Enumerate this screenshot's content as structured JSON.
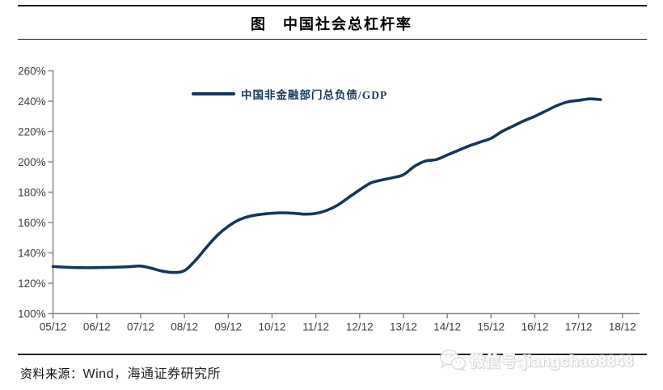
{
  "header": {
    "title": "图　中国社会总杠杆率"
  },
  "chart_data": {
    "type": "line",
    "title": "图　中国社会总杠杆率",
    "grid": false,
    "legend_position": "top-center",
    "x_axis": {
      "tick_labels": [
        "05/12",
        "06/12",
        "07/12",
        "08/12",
        "09/12",
        "10/12",
        "11/12",
        "12/12",
        "13/12",
        "14/12",
        "15/12",
        "16/12",
        "17/12",
        "18/12"
      ]
    },
    "y_axis": {
      "tick_labels": [
        "100%",
        "120%",
        "140%",
        "160%",
        "180%",
        "200%",
        "220%",
        "240%",
        "260%"
      ],
      "min": 100,
      "max": 260,
      "step": 20,
      "unit": "%"
    },
    "series": [
      {
        "name": "中国非金融部门总负债/GDP",
        "color": "#16365C",
        "points": [
          [
            "05/12",
            131.0
          ],
          [
            "06/03",
            130.6
          ],
          [
            "06/06",
            130.3
          ],
          [
            "06/09",
            130.2
          ],
          [
            "06/12",
            130.3
          ],
          [
            "07/03",
            130.4
          ],
          [
            "07/06",
            130.6
          ],
          [
            "07/09",
            130.9
          ],
          [
            "07/12",
            131.3
          ],
          [
            "08/03",
            129.8
          ],
          [
            "08/06",
            127.9
          ],
          [
            "08/09",
            127.1
          ],
          [
            "08/12",
            128.3
          ],
          [
            "09/03",
            135.0
          ],
          [
            "09/06",
            143.5
          ],
          [
            "09/09",
            151.5
          ],
          [
            "09/12",
            157.5
          ],
          [
            "10/03",
            161.8
          ],
          [
            "10/06",
            164.2
          ],
          [
            "10/09",
            165.4
          ],
          [
            "10/12",
            166.1
          ],
          [
            "11/03",
            166.4
          ],
          [
            "11/06",
            166.1
          ],
          [
            "11/09",
            165.5
          ],
          [
            "11/12",
            166.0
          ],
          [
            "12/03",
            168.0
          ],
          [
            "12/06",
            171.5
          ],
          [
            "12/09",
            176.5
          ],
          [
            "12/12",
            181.5
          ],
          [
            "13/03",
            186.0
          ],
          [
            "13/06",
            188.0
          ],
          [
            "13/09",
            189.5
          ],
          [
            "13/12",
            191.5
          ],
          [
            "14/03",
            197.0
          ],
          [
            "14/06",
            200.5
          ],
          [
            "14/09",
            201.5
          ],
          [
            "14/12",
            204.5
          ],
          [
            "15/03",
            207.5
          ],
          [
            "15/06",
            210.5
          ],
          [
            "15/09",
            213.0
          ],
          [
            "15/12",
            215.5
          ],
          [
            "16/03",
            220.0
          ],
          [
            "16/06",
            223.5
          ],
          [
            "16/09",
            227.0
          ],
          [
            "16/12",
            230.0
          ],
          [
            "17/03",
            233.5
          ],
          [
            "17/06",
            237.0
          ],
          [
            "17/09",
            239.5
          ],
          [
            "17/12",
            240.5
          ],
          [
            "18/03",
            241.5
          ],
          [
            "18/06",
            241.0
          ]
        ]
      }
    ]
  },
  "footer": {
    "source_label": "资料来源：",
    "source_text": "Wind，海通证券研究所",
    "watermark": "微信号:jiangchao8848",
    "watermark_icon": "wechat-icon"
  },
  "colors": {
    "line": "#16365C",
    "axis": "#8a8a8a",
    "tick_text": "#3f3f46",
    "legend_text": "#17375E",
    "title_text": "#000000"
  }
}
